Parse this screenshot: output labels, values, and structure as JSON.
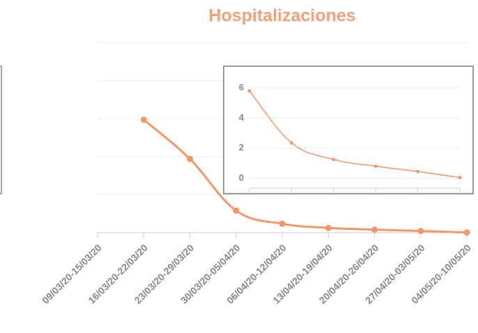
{
  "chart_data": [
    {
      "type": "line",
      "title": "Hospitalizaciones",
      "categories": [
        "09/03/20-15/03/20",
        "16/03/20-22/03/20",
        "23/03/20-29/03/20",
        "30/03/20-05/04/20",
        "06/04/20-12/04/20",
        "13/04/20-19/04/20",
        "20/04/20-26/04/20",
        "27/04/20-03/05/20",
        "04/05/20-10/05/20"
      ],
      "values": [
        null,
        29.7,
        19.4,
        5.8,
        2.35,
        1.25,
        0.8,
        0.45,
        0.05
      ],
      "color": "#f4956a",
      "ylim": [
        0,
        50
      ],
      "yticks": [
        0,
        10,
        20,
        30,
        40,
        50
      ],
      "grid": true
    },
    {
      "type": "line",
      "values": [
        5.8,
        2.35,
        1.25,
        0.8,
        0.45,
        0.05
      ],
      "color": "#f4956a",
      "ylim": [
        -0.65,
        7.35
      ],
      "yticks": [
        0,
        2,
        4,
        6
      ],
      "grid": true
    }
  ]
}
